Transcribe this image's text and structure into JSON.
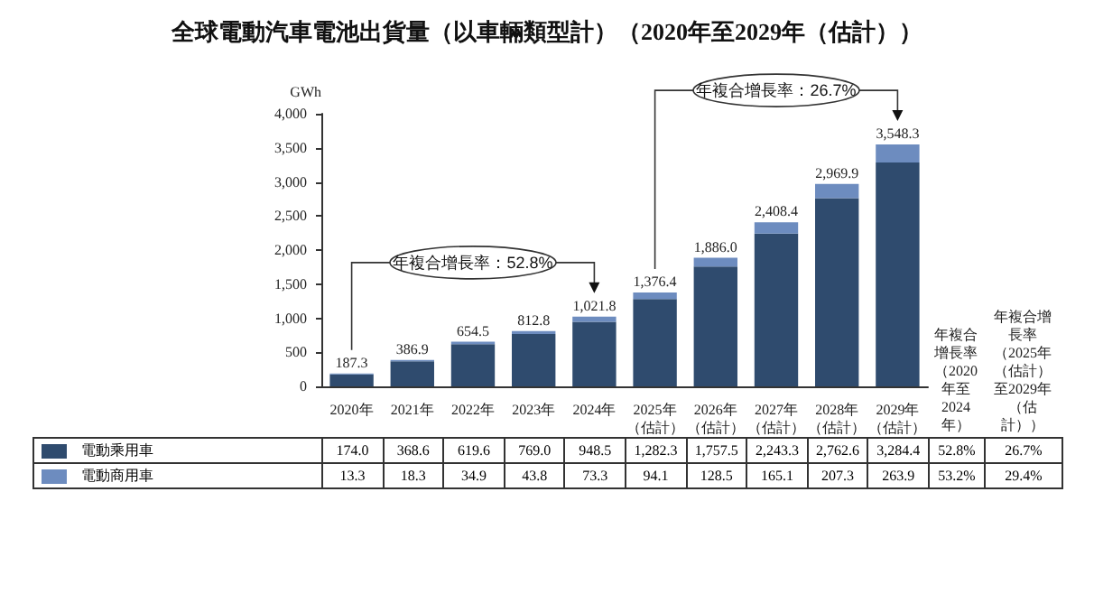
{
  "chart_data": {
    "type": "bar",
    "title": "全球電動汽車電池出貨量（以車輛類型計）（2020年至2029年（估計））",
    "ylabel": "GWh",
    "categories": [
      "2020年",
      "2021年",
      "2022年",
      "2023年",
      "2024年",
      "2025年（估計）",
      "2026年（估計）",
      "2027年（估計）",
      "2028年（估計）",
      "2029年（估計）"
    ],
    "legend": "bottom",
    "series": [
      {
        "name": "電動乘用車",
        "color": "#2f4b6e",
        "values": [
          174.0,
          368.6,
          619.6,
          769.0,
          948.5,
          1282.3,
          1757.5,
          2243.3,
          2762.6,
          3284.4
        ],
        "value_labels": [
          "174.0",
          "368.6",
          "619.6",
          "769.0",
          "948.5",
          "1,282.3",
          "1,757.5",
          "2,243.3",
          "2,762.6",
          "3,284.4"
        ]
      },
      {
        "name": "電動商用車",
        "color": "#6d8cbf",
        "values": [
          13.3,
          18.3,
          34.9,
          43.8,
          73.3,
          94.1,
          128.5,
          165.1,
          207.3,
          263.9
        ],
        "value_labels": [
          "13.3",
          "18.3",
          "34.9",
          "43.8",
          "73.3",
          "94.1",
          "128.5",
          "165.1",
          "207.3",
          "263.9"
        ]
      }
    ],
    "stacked": true,
    "totals": [
      "187.3",
      "386.9",
      "654.5",
      "812.8",
      "1,021.8",
      "1,376.4",
      "1,886.0",
      "2,408.4",
      "2,969.9",
      "3,548.3"
    ],
    "ylim": [
      0,
      4000
    ],
    "yticks": [
      0,
      500,
      {
        "value": 1000,
        "label": "1,000"
      },
      {
        "value": 1500,
        "label": "1,500"
      },
      {
        "value": 2000,
        "label": "2,000"
      },
      {
        "value": 2500,
        "label": "2,500"
      },
      {
        "value": 3000,
        "label": "3,000"
      },
      {
        "value": 3500,
        "label": "3,500"
      },
      {
        "value": 4000,
        "label": "4,000"
      }
    ],
    "annotations": [
      "年複合增長率：52.8%",
      "年複合增長率：26.7%",
      "年複合增長率（2020年至2024年）",
      "年複合增長率（2025年（估計）至2029年（估計））",
      "52.8%",
      "26.7%",
      "53.2%",
      "29.4%"
    ]
  }
}
